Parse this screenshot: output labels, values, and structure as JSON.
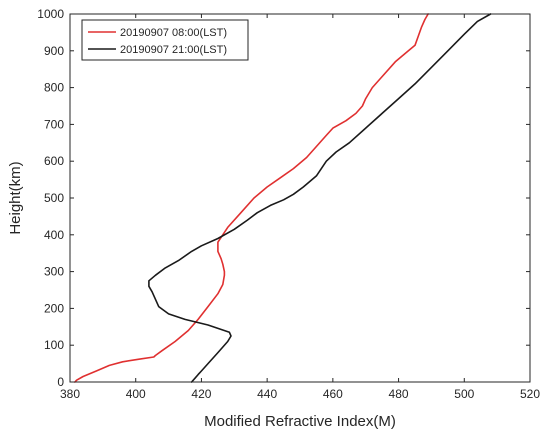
{
  "chart_data": {
    "type": "line",
    "title": "",
    "xlabel": "Modified Refractive Index(M)",
    "ylabel": "Height(km)",
    "xlim": [
      380,
      520
    ],
    "ylim": [
      0,
      1000
    ],
    "xticks": [
      380,
      400,
      420,
      440,
      460,
      480,
      500,
      520
    ],
    "yticks": [
      0,
      100,
      200,
      300,
      400,
      500,
      600,
      700,
      800,
      900,
      1000
    ],
    "grid": false,
    "legend": "top-left",
    "series": [
      {
        "name": "20190907 08:00(LST)",
        "color": "#e03030",
        "points": [
          [
            381.5,
            0
          ],
          [
            382,
            5
          ],
          [
            384,
            15
          ],
          [
            388,
            30
          ],
          [
            392,
            45
          ],
          [
            396,
            55
          ],
          [
            401,
            62
          ],
          [
            405.5,
            68
          ],
          [
            406,
            72
          ],
          [
            408,
            85
          ],
          [
            412,
            110
          ],
          [
            416,
            140
          ],
          [
            419,
            170
          ],
          [
            422,
            205
          ],
          [
            425,
            240
          ],
          [
            426.5,
            265
          ],
          [
            427,
            290
          ],
          [
            427,
            300
          ],
          [
            426.5,
            320
          ],
          [
            426,
            335
          ],
          [
            425,
            355
          ],
          [
            425,
            380
          ],
          [
            428,
            420
          ],
          [
            432,
            460
          ],
          [
            436,
            500
          ],
          [
            440,
            530
          ],
          [
            444,
            555
          ],
          [
            448,
            580
          ],
          [
            452,
            610
          ],
          [
            455,
            640
          ],
          [
            458,
            670
          ],
          [
            460,
            690
          ],
          [
            464,
            710
          ],
          [
            467,
            730
          ],
          [
            469,
            750
          ],
          [
            470,
            770
          ],
          [
            472,
            800
          ],
          [
            475,
            830
          ],
          [
            479,
            870
          ],
          [
            483,
            900
          ],
          [
            485,
            915
          ],
          [
            486,
            940
          ],
          [
            487,
            965
          ],
          [
            488,
            985
          ],
          [
            489,
            1000
          ]
        ]
      },
      {
        "name": "20190907 21:00(LST)",
        "color": "#1a1a1a",
        "points": [
          [
            417,
            0
          ],
          [
            418,
            10
          ],
          [
            419,
            20
          ],
          [
            420,
            30
          ],
          [
            422,
            50
          ],
          [
            425,
            80
          ],
          [
            428,
            110
          ],
          [
            429,
            125
          ],
          [
            428.5,
            135
          ],
          [
            422,
            155
          ],
          [
            415,
            170
          ],
          [
            410,
            185
          ],
          [
            407,
            205
          ],
          [
            406,
            225
          ],
          [
            405,
            245
          ],
          [
            404,
            260
          ],
          [
            404,
            275
          ],
          [
            406,
            290
          ],
          [
            409,
            310
          ],
          [
            413,
            330
          ],
          [
            417,
            355
          ],
          [
            420,
            370
          ],
          [
            425,
            390
          ],
          [
            430,
            415
          ],
          [
            434,
            440
          ],
          [
            437,
            460
          ],
          [
            441,
            480
          ],
          [
            445,
            495
          ],
          [
            448,
            510
          ],
          [
            451,
            530
          ],
          [
            455,
            560
          ],
          [
            458,
            600
          ],
          [
            461,
            625
          ],
          [
            465,
            650
          ],
          [
            470,
            690
          ],
          [
            475,
            730
          ],
          [
            480,
            770
          ],
          [
            485,
            810
          ],
          [
            490,
            855
          ],
          [
            495,
            900
          ],
          [
            500,
            945
          ],
          [
            504,
            980
          ],
          [
            508,
            1000
          ]
        ]
      }
    ]
  }
}
